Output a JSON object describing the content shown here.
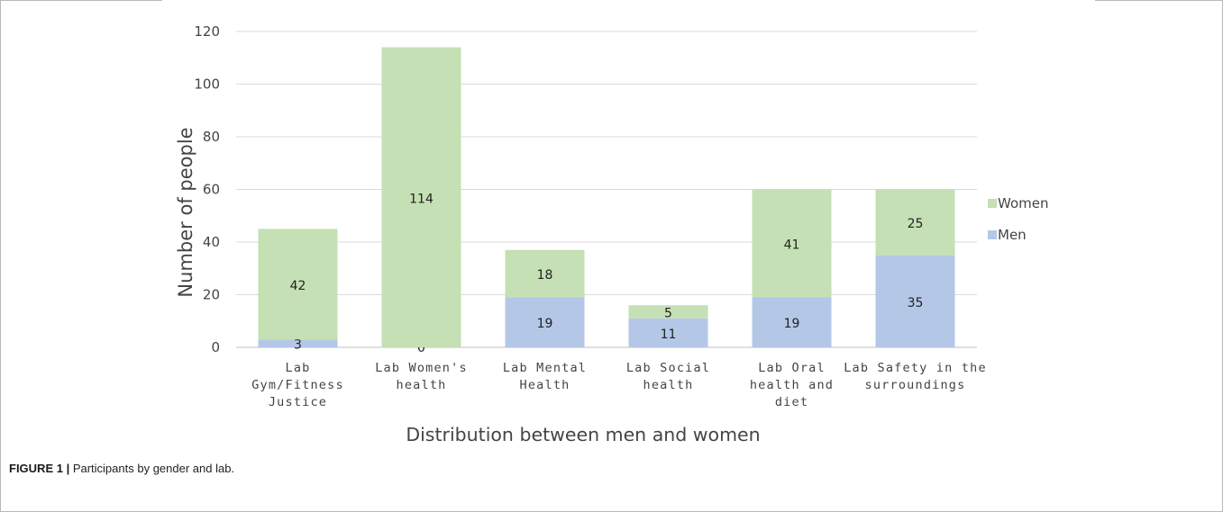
{
  "chart_data": {
    "type": "bar",
    "stacked": true,
    "categories": [
      [
        "Lab",
        "Gym/Fitness",
        "Justice"
      ],
      [
        "Lab Women's",
        "health"
      ],
      [
        "Lab Mental",
        "Health"
      ],
      [
        "Lab Social",
        "health"
      ],
      [
        "Lab Oral",
        "health and",
        "diet"
      ],
      [
        "Lab Safety in the",
        "surroundings"
      ]
    ],
    "series": [
      {
        "name": "Men",
        "color": "#b4c7e7",
        "values": [
          3,
          0,
          19,
          11,
          19,
          35
        ]
      },
      {
        "name": "Women",
        "color": "#c5e0b4",
        "values": [
          42,
          114,
          18,
          5,
          41,
          25
        ]
      }
    ],
    "xlabel": "Distribution between men and women",
    "ylabel": "Number of people",
    "ylim": [
      0,
      120
    ],
    "yticks": [
      0,
      20,
      40,
      60,
      80,
      100,
      120
    ],
    "grid": true,
    "legend_position": "right"
  },
  "caption": {
    "label": "FIGURE 1 |",
    "text": " Participants by gender and lab."
  }
}
